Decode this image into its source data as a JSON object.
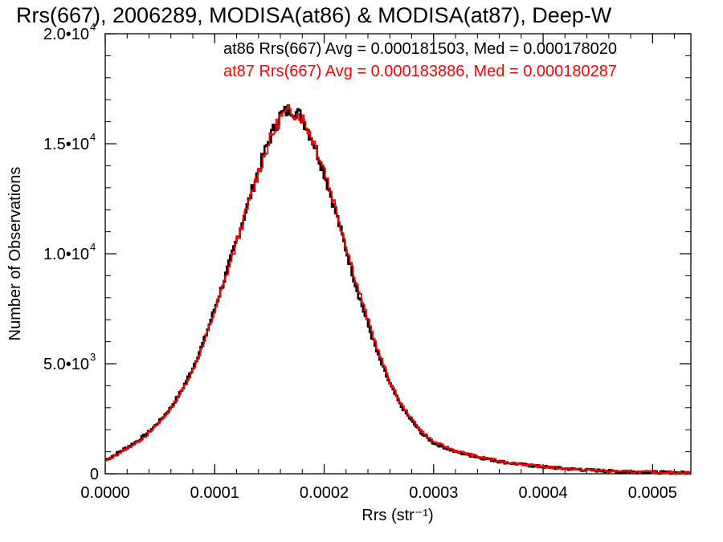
{
  "chart_data": {
    "type": "line",
    "title": "Rrs(667), 2006289, MODISA(at86) & MODISA(at87), Deep-W",
    "xlabel": "Rrs (str⁻¹)",
    "ylabel": "Number of Observations",
    "xlim": [
      0.0,
      0.000535
    ],
    "ylim": [
      0,
      20000
    ],
    "x_ticks": [
      0.0,
      0.0001,
      0.0002,
      0.0003,
      0.0004,
      0.0005
    ],
    "x_tick_labels": [
      "0.0000",
      "0.0001",
      "0.0002",
      "0.0003",
      "0.0004",
      "0.0005"
    ],
    "y_ticks": [
      0,
      5000,
      10000,
      15000,
      20000
    ],
    "y_tick_labels": [
      {
        "mantissa": "0",
        "exponent": ""
      },
      {
        "mantissa": "5.0•10",
        "exponent": "3"
      },
      {
        "mantissa": "1.0•10",
        "exponent": "4"
      },
      {
        "mantissa": "1.5•10",
        "exponent": "4"
      },
      {
        "mantissa": "2.0•10",
        "exponent": "4"
      }
    ],
    "grid": false,
    "x": [
      0.0,
      1e-05,
      2e-05,
      3e-05,
      4e-05,
      5e-05,
      6e-05,
      7e-05,
      8e-05,
      9e-05,
      0.0001,
      0.00011,
      0.00012,
      0.00013,
      0.00014,
      0.00015,
      0.00016,
      0.00017,
      0.00018,
      0.00019,
      0.0002,
      0.00021,
      0.00022,
      0.00023,
      0.00024,
      0.00025,
      0.00026,
      0.00027,
      0.00028,
      0.00029,
      0.0003,
      0.00032,
      0.00034,
      0.00036,
      0.00038,
      0.0004,
      0.00042,
      0.00044,
      0.00046,
      0.00048,
      0.0005,
      0.00052,
      0.000535
    ],
    "series": [
      {
        "name": "at86",
        "color": "#000000",
        "values": [
          600,
          900,
          1200,
          1500,
          1900,
          2400,
          3000,
          3800,
          4800,
          6000,
          7500,
          9000,
          10600,
          12200,
          13800,
          15200,
          16300,
          16600,
          16200,
          15100,
          13700,
          12000,
          10200,
          8400,
          6800,
          5300,
          4100,
          3100,
          2400,
          1800,
          1400,
          1000,
          760,
          560,
          420,
          310,
          230,
          170,
          120,
          90,
          70,
          50,
          40
        ]
      },
      {
        "name": "at87",
        "color": "#ff0000",
        "values": [
          550,
          850,
          1150,
          1450,
          1850,
          2350,
          2950,
          3750,
          4700,
          5900,
          7400,
          8900,
          10500,
          12100,
          13700,
          15100,
          16200,
          16500,
          16200,
          15200,
          13900,
          12200,
          10400,
          8600,
          7000,
          5500,
          4200,
          3200,
          2500,
          1900,
          1450,
          1050,
          790,
          580,
          440,
          320,
          240,
          180,
          130,
          95,
          75,
          55,
          45
        ]
      }
    ],
    "annotations": [
      {
        "text": "at86 Rrs(667) Avg = 0.000181503, Med = 0.000178020",
        "color": "#000000"
      },
      {
        "text": "at87 Rrs(667) Avg = 0.000183886, Med = 0.000180287",
        "color": "#ff0000"
      }
    ]
  }
}
